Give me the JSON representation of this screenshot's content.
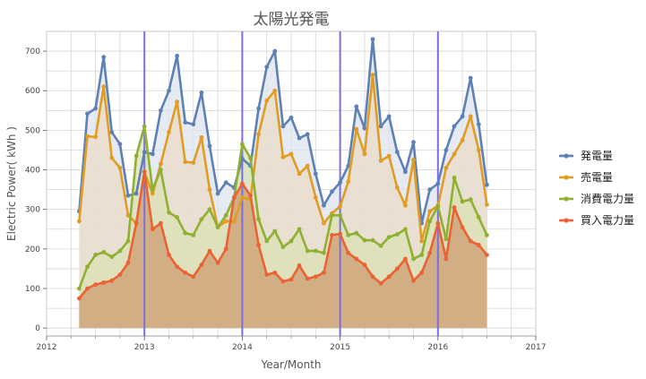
{
  "chart_data": {
    "type": "line",
    "title": "太陽光発電",
    "xlabel": "Year/Month",
    "ylabel": "Electric Power( kWh )",
    "xlim": [
      2012,
      2017
    ],
    "ylim": [
      -20,
      750
    ],
    "x_ticks": [
      "2012",
      "2013",
      "2014",
      "2015",
      "2016",
      "2017"
    ],
    "y_ticks": [
      "0",
      "100",
      "200",
      "300",
      "400",
      "500",
      "600",
      "700"
    ],
    "grid": true,
    "legend": "right",
    "year_marker_lines": [
      2013,
      2014,
      2015,
      2016
    ],
    "x_start": "2012-05",
    "x": [
      "2012-05",
      "2012-06",
      "2012-07",
      "2012-08",
      "2012-09",
      "2012-10",
      "2012-11",
      "2012-12",
      "2013-01",
      "2013-02",
      "2013-03",
      "2013-04",
      "2013-05",
      "2013-06",
      "2013-07",
      "2013-08",
      "2013-09",
      "2013-10",
      "2013-11",
      "2013-12",
      "2014-01",
      "2014-02",
      "2014-03",
      "2014-04",
      "2014-05",
      "2014-06",
      "2014-07",
      "2014-08",
      "2014-09",
      "2014-10",
      "2014-11",
      "2014-12",
      "2015-01",
      "2015-02",
      "2015-03",
      "2015-04",
      "2015-05",
      "2015-06",
      "2015-07",
      "2015-08",
      "2015-09",
      "2015-10",
      "2015-11",
      "2015-12",
      "2016-01",
      "2016-02",
      "2016-03",
      "2016-04",
      "2016-05",
      "2016-06",
      "2016-07"
    ],
    "series": [
      {
        "name": "発電量",
        "color": "#5e81b5",
        "fill": "#dde3ee",
        "values": [
          295,
          542,
          555,
          685,
          495,
          465,
          335,
          340,
          445,
          440,
          550,
          600,
          688,
          520,
          515,
          595,
          460,
          340,
          368,
          355,
          428,
          410,
          555,
          660,
          700,
          510,
          532,
          480,
          490,
          390,
          310,
          345,
          368,
          410,
          560,
          505,
          730,
          510,
          535,
          445,
          395,
          470,
          265,
          350,
          365,
          450,
          510,
          535,
          632,
          515,
          362
        ]
      },
      {
        "name": "売電量",
        "color": "#e19c24",
        "fill": "#e9dcc8",
        "values": [
          270,
          485,
          483,
          610,
          430,
          405,
          285,
          265,
          395,
          340,
          415,
          495,
          572,
          420,
          418,
          482,
          350,
          255,
          270,
          270,
          330,
          325,
          490,
          575,
          600,
          432,
          440,
          390,
          410,
          330,
          265,
          290,
          308,
          370,
          503,
          440,
          640,
          423,
          435,
          355,
          310,
          425,
          220,
          295,
          310,
          405,
          440,
          475,
          535,
          450,
          312
        ]
      },
      {
        "name": "消費電力量",
        "color": "#8fb032",
        "fill": "#d9e1b4",
        "values": [
          100,
          155,
          185,
          192,
          180,
          195,
          220,
          435,
          510,
          350,
          400,
          292,
          280,
          240,
          235,
          275,
          300,
          255,
          285,
          330,
          465,
          430,
          275,
          220,
          245,
          205,
          220,
          250,
          195,
          195,
          190,
          285,
          285,
          235,
          240,
          222,
          222,
          208,
          230,
          237,
          250,
          175,
          185,
          270,
          308,
          225,
          380,
          320,
          325,
          280,
          235
        ]
      },
      {
        "name": "買入電力量",
        "color": "#eb6235",
        "fill": "#cfa97d",
        "values": [
          75,
          100,
          110,
          115,
          120,
          135,
          165,
          265,
          395,
          250,
          265,
          185,
          155,
          140,
          130,
          160,
          195,
          165,
          200,
          330,
          365,
          335,
          210,
          135,
          140,
          118,
          123,
          158,
          125,
          130,
          140,
          235,
          238,
          190,
          175,
          160,
          130,
          113,
          130,
          150,
          175,
          120,
          140,
          190,
          265,
          175,
          305,
          255,
          220,
          210,
          185
        ]
      }
    ]
  }
}
